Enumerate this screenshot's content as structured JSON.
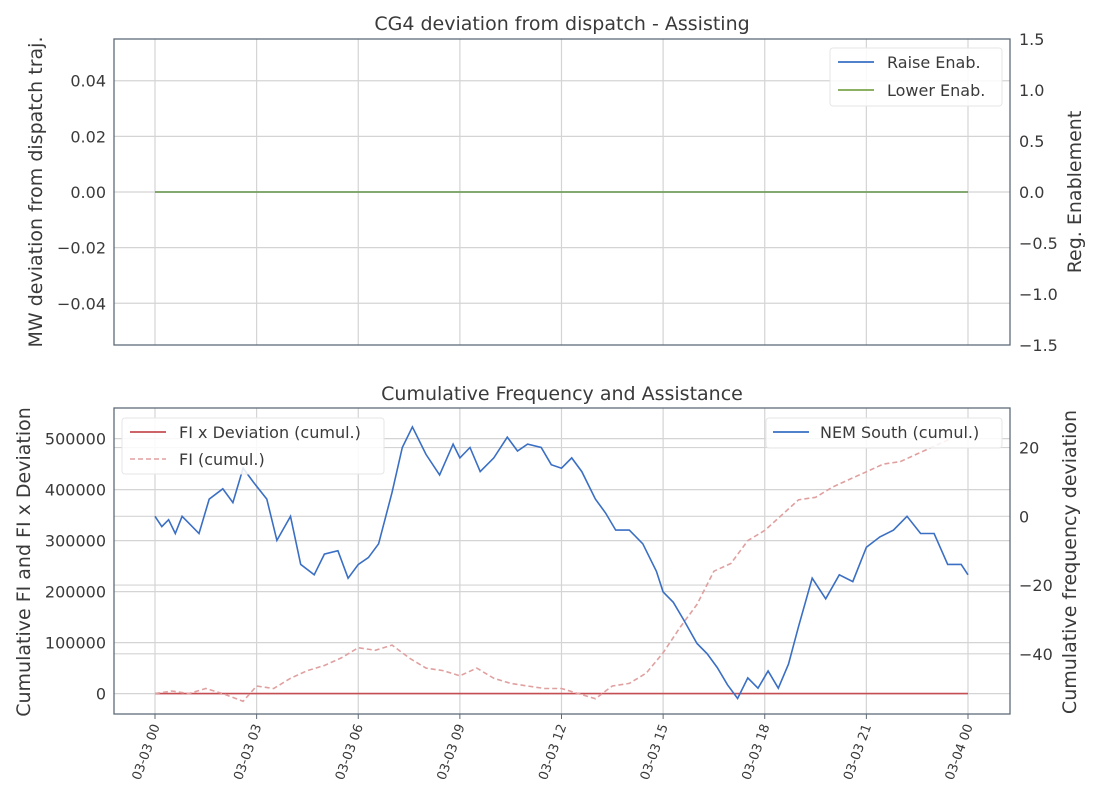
{
  "chart_data": [
    {
      "type": "line",
      "title": "CG4 deviation from dispatch - Assisting",
      "ylabel": "MW deviation from dispatch traj.",
      "ylabel_right": "Reg. Enablement",
      "ylim": [
        -0.055,
        0.055
      ],
      "ylim_right": [
        -1.5,
        1.5
      ],
      "yticks": [
        "0.04",
        "0.02",
        "0.00",
        "−0.02",
        "−0.04"
      ],
      "yticks_right": [
        "1.5",
        "1.0",
        "0.5",
        "0.0",
        "−0.5",
        "−1.0",
        "−1.5"
      ],
      "grid": true,
      "legend_position": "top-right",
      "series": [
        {
          "name": "Raise Enab.",
          "axis": "right",
          "color": "#3a6fc4",
          "x": [
            "03-03 00:00",
            "03-04 00:00"
          ],
          "values": [
            0.0,
            0.0
          ]
        },
        {
          "name": "Lower Enab.",
          "axis": "right",
          "color": "#7da64c",
          "x": [
            "03-03 00:00",
            "03-04 00:00"
          ],
          "values": [
            0.0,
            0.0
          ]
        }
      ]
    },
    {
      "type": "line",
      "title": "Cumulative Frequency and Assistance",
      "ylabel": "Cumulative FI and FI x Deviation",
      "ylabel_right": "Cumulative frequency deviation",
      "ylim": [
        -40000,
        560000
      ],
      "ylim_right": [
        -57.5,
        31.5
      ],
      "yticks": [
        "500000",
        "400000",
        "300000",
        "200000",
        "100000",
        "0"
      ],
      "yticks_right": [
        "20",
        "0",
        "−20",
        "−40"
      ],
      "xticks": [
        "03-03 00",
        "03-03 03",
        "03-03 06",
        "03-03 09",
        "03-03 12",
        "03-03 15",
        "03-03 18",
        "03-03 21",
        "03-04 00"
      ],
      "grid": true,
      "legend_left": [
        "FI x Deviation (cumul.)",
        "FI (cumul.)"
      ],
      "legend_right": [
        "NEM South (cumul.)"
      ],
      "series": [
        {
          "name": "FI x Deviation (cumul.)",
          "axis": "left",
          "color": "#c44e52",
          "style": "solid",
          "x_hours": [
            0,
            24
          ],
          "values": [
            0,
            0
          ]
        },
        {
          "name": "FI (cumul.)",
          "axis": "left",
          "color": "#e0a0a0",
          "style": "dashed",
          "x_hours": [
            0,
            0.5,
            1,
            1.5,
            2,
            2.6,
            3,
            3.5,
            4,
            4.5,
            5,
            5.5,
            6,
            6.5,
            7,
            7.5,
            8,
            8.5,
            9,
            9.5,
            10,
            10.5,
            11,
            11.5,
            12,
            12.5,
            13,
            13.5,
            14,
            14.5,
            15,
            15.5,
            16,
            16.5,
            17,
            17.5,
            18,
            18.5,
            19,
            19.5,
            20,
            20.5,
            21,
            21.5,
            22,
            22.5,
            23,
            23.5
          ],
          "values": [
            0,
            5000,
            0,
            10000,
            0,
            -15000,
            15000,
            10000,
            30000,
            45000,
            55000,
            70000,
            90000,
            85000,
            95000,
            70000,
            50000,
            45000,
            35000,
            50000,
            30000,
            20000,
            15000,
            10000,
            10000,
            0,
            -10000,
            15000,
            20000,
            40000,
            80000,
            130000,
            175000,
            240000,
            255000,
            300000,
            320000,
            350000,
            380000,
            385000,
            405000,
            420000,
            435000,
            450000,
            455000,
            470000,
            485000,
            500000
          ]
        },
        {
          "name": "NEM South (cumul.)",
          "axis": "right",
          "color": "#3a6fc4",
          "style": "solid",
          "x_hours": [
            0,
            0.2,
            0.4,
            0.6,
            0.8,
            1,
            1.3,
            1.6,
            2,
            2.3,
            2.6,
            2.9,
            3.3,
            3.6,
            4,
            4.3,
            4.7,
            5,
            5.4,
            5.7,
            6,
            6.3,
            6.6,
            7,
            7.3,
            7.6,
            8,
            8.4,
            8.8,
            9,
            9.3,
            9.6,
            10,
            10.4,
            10.7,
            11,
            11.4,
            11.7,
            12,
            12.3,
            12.6,
            13,
            13.3,
            13.6,
            14,
            14.4,
            14.8,
            15,
            15.3,
            15.6,
            16,
            16.3,
            16.6,
            16.9,
            17.2,
            17.5,
            17.8,
            18.1,
            18.4,
            18.7,
            19,
            19.4,
            19.8,
            20.2,
            20.6,
            21,
            21.4,
            21.8,
            22.2,
            22.6,
            23,
            23.4,
            23.8,
            24
          ],
          "values": [
            0,
            -3,
            -1,
            -5,
            0,
            -2,
            -5,
            5,
            8,
            4,
            14,
            10,
            5,
            -7,
            0,
            -14,
            -17,
            -11,
            -10,
            -18,
            -14,
            -12,
            -8,
            7,
            20,
            26,
            18,
            12,
            21,
            17,
            20,
            13,
            17,
            23,
            19,
            21,
            20,
            15,
            14,
            17,
            13,
            5,
            1,
            -4,
            -4,
            -8,
            -16,
            -22,
            -25,
            -30,
            -37,
            -40,
            -44,
            -49,
            -53,
            -47,
            -50,
            -45,
            -50,
            -43,
            -32,
            -18,
            -24,
            -17,
            -19,
            -9,
            -6,
            -4,
            0,
            -5,
            -5,
            -14,
            -14,
            -17
          ]
        }
      ]
    }
  ]
}
